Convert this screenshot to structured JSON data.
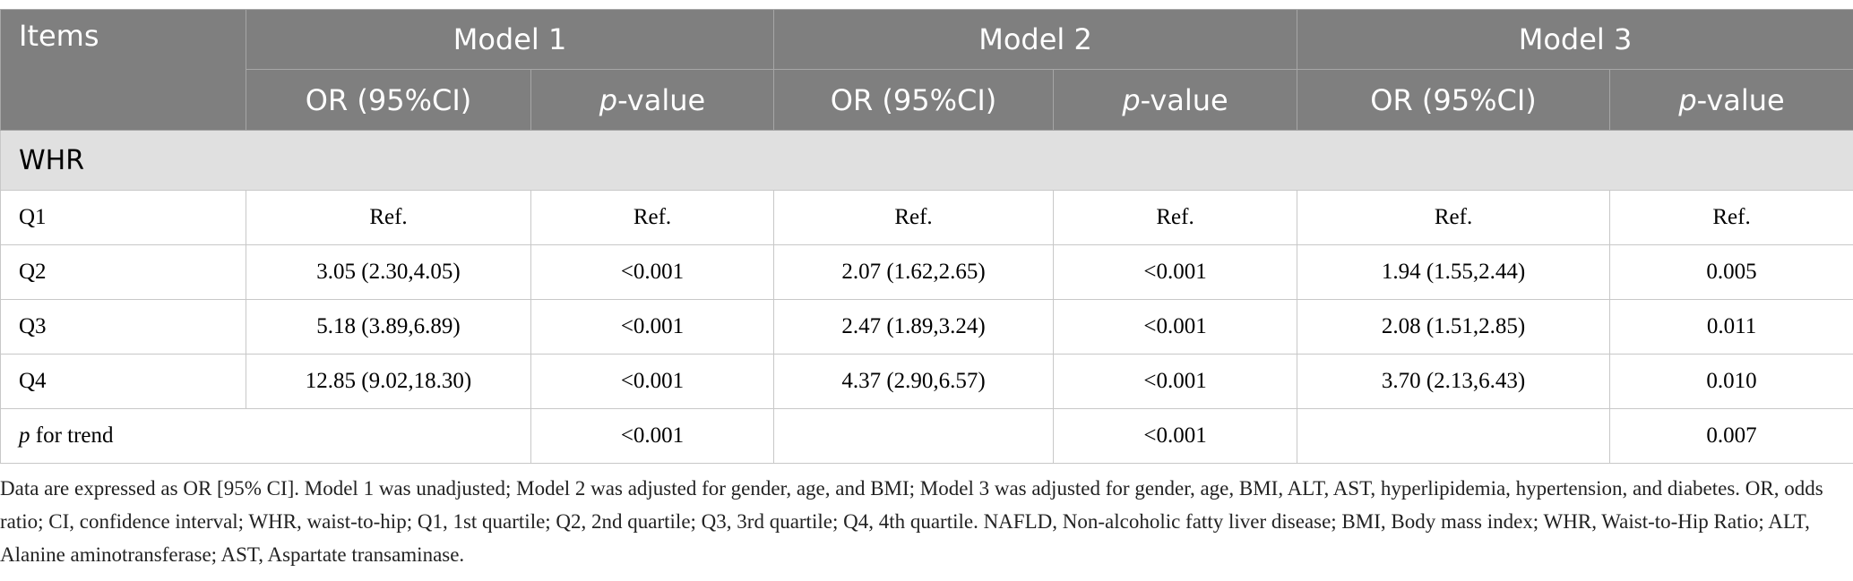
{
  "table": {
    "header": {
      "items": "Items",
      "models": [
        {
          "name": "Model 1",
          "or_label": "OR (95%CI)",
          "p_label": {
            "italic": "p",
            "rest": "-value"
          }
        },
        {
          "name": "Model 2",
          "or_label": "OR (95%CI)",
          "p_label": {
            "italic": "p",
            "rest": "-value"
          }
        },
        {
          "name": "Model 3",
          "or_label": "OR (95%CI)",
          "p_label": {
            "italic": "p",
            "rest": "-value"
          }
        }
      ]
    },
    "section": "WHR",
    "rows": [
      [
        "Q1",
        "Ref.",
        "Ref.",
        "Ref.",
        "Ref.",
        "Ref.",
        "Ref."
      ],
      [
        "Q2",
        "3.05 (2.30,4.05)",
        "<0.001",
        "2.07 (1.62,2.65)",
        "<0.001",
        "1.94 (1.55,2.44)",
        "0.005"
      ],
      [
        "Q3",
        "5.18 (3.89,6.89)",
        "<0.001",
        "2.47 (1.89,3.24)",
        "<0.001",
        "2.08 (1.51,2.85)",
        "0.011"
      ],
      [
        "Q4",
        "12.85 (9.02,18.30)",
        "<0.001",
        "4.37 (2.90,6.57)",
        "<0.001",
        "3.70 (2.13,6.43)",
        "0.010"
      ]
    ],
    "trend": {
      "label": {
        "italic": "p",
        "rest": " for trend"
      },
      "p_values": [
        "<0.001",
        "<0.001",
        "0.007"
      ]
    }
  },
  "footnote": "Data are expressed as OR [95% CI]. Model 1 was unadjusted; Model 2 was adjusted for gender, age, and BMI; Model 3 was adjusted for gender, age, BMI, ALT, AST, hyperlipidemia, hypertension, and diabetes. OR, odds ratio; CI, confidence interval; WHR, waist-to-hip; Q1, 1st quartile; Q2, 2nd quartile; Q3, 3rd quartile; Q4, 4th quartile. NAFLD, Non-alcoholic fatty liver disease; BMI, Body mass index; WHR, Waist-to-Hip Ratio; ALT, Alanine aminotransferase; AST, Aspartate transaminase."
}
